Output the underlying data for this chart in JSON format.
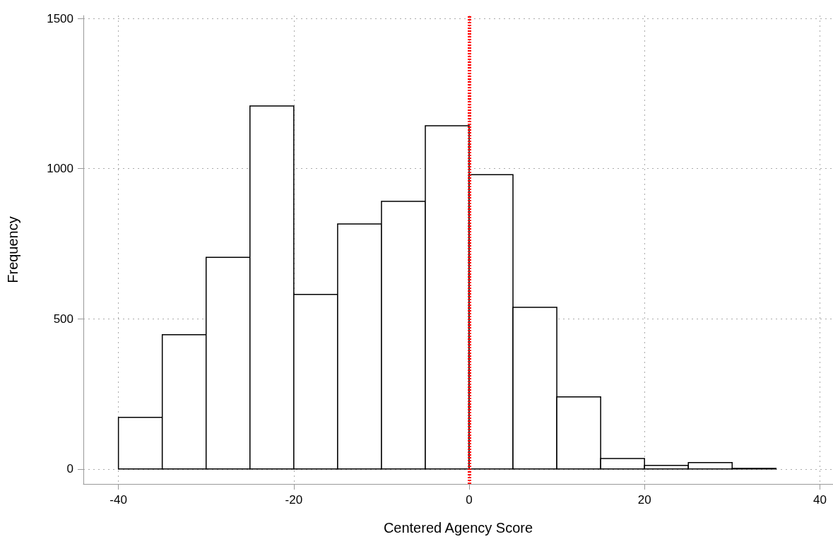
{
  "chart_data": {
    "type": "histogram",
    "xlabel": "Centered Agency Score",
    "ylabel": "Frequency",
    "bins": [
      -40,
      -35,
      -30,
      -25,
      -20,
      -15,
      -10,
      -5,
      0,
      5,
      10,
      15,
      20,
      25,
      30,
      35
    ],
    "values": [
      172,
      447,
      705,
      1209,
      581,
      816,
      891,
      1143,
      980,
      538,
      240,
      35,
      12,
      21,
      2
    ],
    "color": "#ffffff",
    "xlim": [
      -44,
      41.5
    ],
    "xticks": [
      -40,
      -20,
      0,
      20,
      40
    ],
    "ylim": [
      -50,
      1510
    ],
    "yticks": [
      0,
      500,
      1000,
      1500
    ],
    "grid": true,
    "ref_lines": [
      {
        "axis": "x",
        "value": 0,
        "label": null,
        "color": "#ff0000",
        "line_style": "dotted"
      }
    ]
  }
}
